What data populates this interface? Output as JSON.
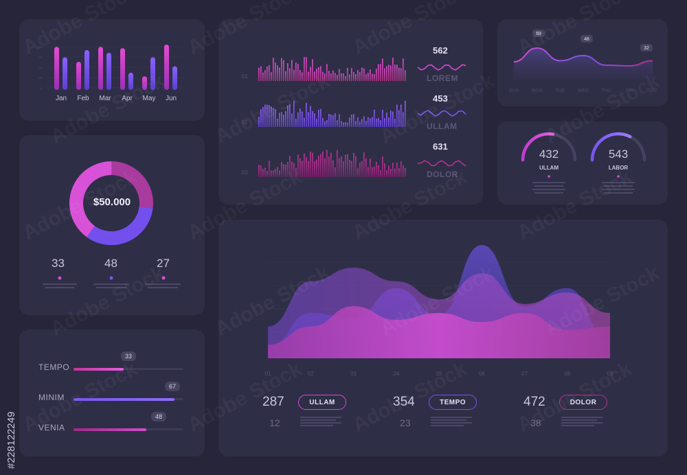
{
  "colors": {
    "pink": "#d44bd0",
    "purple": "#7a55f0",
    "magenta": "#b5328f",
    "bg": "#262539",
    "card": "#2f2e47"
  },
  "monthly_bars": {
    "months": [
      "Jan",
      "Feb",
      "Mar",
      "Apr",
      "May",
      "Jun"
    ],
    "pink_values": [
      0.95,
      0.62,
      0.95,
      0.92,
      0.3,
      1.0
    ],
    "purple_values": [
      0.72,
      0.88,
      0.82,
      0.38,
      0.72,
      0.52
    ]
  },
  "donut": {
    "value": "$50.000",
    "segments": [
      0.33,
      0.48,
      0.27
    ],
    "stats": [
      "33",
      "48",
      "27"
    ]
  },
  "progress": {
    "items": [
      {
        "label": "TEMPO",
        "value": "33",
        "fill": 0.33
      },
      {
        "label": "MINIM",
        "value": "67",
        "fill": 0.67
      },
      {
        "label": "VENIA",
        "value": "48",
        "fill": 0.48
      }
    ]
  },
  "waveforms": {
    "rows": [
      {
        "index": "01",
        "value": "562",
        "label": "LOREM"
      },
      {
        "index": "02",
        "value": "453",
        "label": "ULLAM"
      },
      {
        "index": "03",
        "value": "631",
        "label": "DOLOR"
      }
    ]
  },
  "week_line": {
    "days": [
      "SUN",
      "MON",
      "TUE",
      "WED",
      "THU",
      "FRI",
      "SAT"
    ],
    "values": [
      0.52,
      0.92,
      0.55,
      0.7,
      0.42,
      0.4,
      0.55
    ],
    "callouts": [
      "69",
      "48",
      "32"
    ]
  },
  "gauges": [
    {
      "value": "432",
      "label": "ULLAM",
      "level": 0.55
    },
    {
      "value": "543",
      "label": "LABOR",
      "level": 0.65
    }
  ],
  "area_chart": {
    "x_labels": [
      "01",
      "02",
      "03",
      "04",
      "05",
      "06",
      "07",
      "08",
      "09"
    ],
    "series_a": [
      10,
      40,
      35,
      62,
      38,
      100,
      46,
      62,
      15
    ],
    "series_b": [
      28,
      68,
      80,
      68,
      52,
      75,
      48,
      58,
      40
    ],
    "series_c": [
      12,
      28,
      46,
      34,
      40,
      32,
      40,
      25,
      28
    ]
  },
  "summary": [
    {
      "big": "287",
      "small": "12",
      "pill": "ULLAM"
    },
    {
      "big": "354",
      "small": "23",
      "pill": "TEMPO"
    },
    {
      "big": "472",
      "small": "38",
      "pill": "DOLOR"
    }
  ],
  "watermark": "Adobe Stock",
  "stock_id": "#228122249"
}
